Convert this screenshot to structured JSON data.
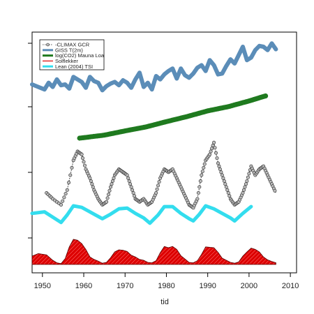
{
  "chart_data": {
    "type": "line",
    "xlabel": "tid",
    "xlim": [
      1947.5,
      2011.5
    ],
    "x_ticks": [
      1950,
      1960,
      1970,
      1980,
      1990,
      2000,
      2010
    ],
    "y_axis": "unlabeled, stacked normalized series",
    "legend_position": "top-left",
    "series": [
      {
        "name": "-CLIMAX GCR",
        "style": "points+dotted",
        "color": "#333333",
        "points": [
          [
            1951.0,
            -2.0
          ],
          [
            1952.5,
            -3.0
          ],
          [
            1954.5,
            -4.0
          ],
          [
            1956.0,
            -1.5
          ],
          [
            1957.5,
            3.5
          ],
          [
            1958.5,
            5.0
          ],
          [
            1959.5,
            4.5
          ],
          [
            1960.5,
            2.0
          ],
          [
            1961.5,
            0.5
          ],
          [
            1962.5,
            -1.5
          ],
          [
            1963.5,
            -3.0
          ],
          [
            1964.5,
            -4.0
          ],
          [
            1965.5,
            -3.5
          ],
          [
            1966.5,
            -1.0
          ],
          [
            1967.5,
            1.0
          ],
          [
            1968.5,
            2.0
          ],
          [
            1969.5,
            1.5
          ],
          [
            1970.5,
            1.0
          ],
          [
            1971.5,
            -1.0
          ],
          [
            1972.5,
            -3.0
          ],
          [
            1973.5,
            -3.5
          ],
          [
            1974.5,
            -3.0
          ],
          [
            1975.5,
            -4.0
          ],
          [
            1976.5,
            -3.5
          ],
          [
            1977.5,
            -2.0
          ],
          [
            1978.5,
            0.5
          ],
          [
            1979.5,
            2.0
          ],
          [
            1980.5,
            1.5
          ],
          [
            1981.5,
            2.0
          ],
          [
            1982.5,
            0.5
          ],
          [
            1983.5,
            -1.0
          ],
          [
            1984.5,
            -2.5
          ],
          [
            1985.5,
            -4.0
          ],
          [
            1986.5,
            -4.5
          ],
          [
            1987.5,
            -3.0
          ],
          [
            1988.5,
            1.0
          ],
          [
            1989.5,
            3.5
          ],
          [
            1990.5,
            4.5
          ],
          [
            1991.5,
            6.5
          ],
          [
            1992.5,
            3.0
          ],
          [
            1993.5,
            1.0
          ],
          [
            1994.5,
            -1.0
          ],
          [
            1995.5,
            -3.0
          ],
          [
            1996.5,
            -4.0
          ],
          [
            1997.5,
            -3.5
          ],
          [
            1998.5,
            -2.0
          ],
          [
            1999.5,
            0.0
          ],
          [
            2000.5,
            2.5
          ],
          [
            2001.5,
            1.0
          ],
          [
            2002.5,
            2.0
          ],
          [
            2003.5,
            2.5
          ],
          [
            2004.5,
            1.0
          ],
          [
            2005.5,
            -0.5
          ],
          [
            2006.5,
            -2.0
          ]
        ]
      },
      {
        "name": "GISS T(2m)",
        "style": "line",
        "color": "#5b8db8",
        "points": [
          [
            1947.5,
            0.0
          ],
          [
            1949.0,
            -0.3
          ],
          [
            1950.5,
            -0.6
          ],
          [
            1951.5,
            0.2
          ],
          [
            1952.5,
            -0.3
          ],
          [
            1953.5,
            0.6
          ],
          [
            1954.5,
            -0.1
          ],
          [
            1955.5,
            0.0
          ],
          [
            1956.5,
            -0.5
          ],
          [
            1957.5,
            0.9
          ],
          [
            1958.5,
            0.6
          ],
          [
            1959.5,
            0.3
          ],
          [
            1960.5,
            -0.4
          ],
          [
            1961.5,
            0.9
          ],
          [
            1962.5,
            0.4
          ],
          [
            1963.5,
            0.2
          ],
          [
            1964.5,
            -0.7
          ],
          [
            1965.5,
            -0.2
          ],
          [
            1966.5,
            0.1
          ],
          [
            1967.5,
            0.3
          ],
          [
            1968.5,
            -0.1
          ],
          [
            1969.5,
            0.5
          ],
          [
            1970.5,
            0.2
          ],
          [
            1971.5,
            -0.4
          ],
          [
            1972.5,
            0.6
          ],
          [
            1973.5,
            1.4
          ],
          [
            1974.5,
            -0.3
          ],
          [
            1975.5,
            0.2
          ],
          [
            1976.5,
            -0.6
          ],
          [
            1977.5,
            1.0
          ],
          [
            1978.5,
            0.6
          ],
          [
            1979.5,
            1.2
          ],
          [
            1980.5,
            1.6
          ],
          [
            1981.5,
            1.9
          ],
          [
            1982.5,
            0.7
          ],
          [
            1983.5,
            1.9
          ],
          [
            1984.5,
            1.1
          ],
          [
            1985.5,
            0.8
          ],
          [
            1986.5,
            1.3
          ],
          [
            1987.5,
            2.0
          ],
          [
            1988.5,
            2.3
          ],
          [
            1989.5,
            1.6
          ],
          [
            1990.5,
            2.9
          ],
          [
            1991.5,
            2.3
          ],
          [
            1992.5,
            1.2
          ],
          [
            1993.5,
            1.3
          ],
          [
            1994.5,
            2.2
          ],
          [
            1995.5,
            3.0
          ],
          [
            1996.5,
            2.5
          ],
          [
            1997.5,
            3.5
          ],
          [
            1998.5,
            4.5
          ],
          [
            1999.5,
            2.9
          ],
          [
            2000.5,
            3.2
          ],
          [
            2001.5,
            4.1
          ],
          [
            2002.5,
            4.6
          ],
          [
            2003.5,
            4.5
          ],
          [
            2004.5,
            4.1
          ],
          [
            2005.5,
            4.9
          ],
          [
            2006.5,
            4.2
          ]
        ]
      },
      {
        "name": "log(CO2) Mauna Loa",
        "style": "points",
        "color": "#1f7a1f",
        "points": [
          [
            1959.0,
            315.9
          ],
          [
            1965.0,
            320.0
          ],
          [
            1970.0,
            325.7
          ],
          [
            1975.0,
            331.1
          ],
          [
            1980.0,
            338.7
          ],
          [
            1985.0,
            346.0
          ],
          [
            1990.0,
            354.4
          ],
          [
            1995.0,
            360.8
          ],
          [
            2000.0,
            369.5
          ],
          [
            2004.0,
            377.5
          ]
        ]
      },
      {
        "name": "Solflekker",
        "style": "filled-area",
        "color": "#dd0000",
        "points": [
          [
            1947.5,
            2.0
          ],
          [
            1949.0,
            2.6
          ],
          [
            1951.0,
            2.3
          ],
          [
            1952.5,
            1.0
          ],
          [
            1953.5,
            0.4
          ],
          [
            1954.5,
            0.2
          ],
          [
            1955.5,
            1.4
          ],
          [
            1956.5,
            4.2
          ],
          [
            1957.5,
            6.0
          ],
          [
            1958.5,
            5.8
          ],
          [
            1959.5,
            5.0
          ],
          [
            1960.5,
            3.6
          ],
          [
            1961.5,
            1.8
          ],
          [
            1962.5,
            1.2
          ],
          [
            1963.5,
            0.8
          ],
          [
            1964.5,
            0.3
          ],
          [
            1965.5,
            0.5
          ],
          [
            1966.5,
            1.6
          ],
          [
            1967.5,
            3.0
          ],
          [
            1968.5,
            3.5
          ],
          [
            1969.5,
            3.4
          ],
          [
            1970.5,
            3.1
          ],
          [
            1971.5,
            2.2
          ],
          [
            1972.5,
            1.8
          ],
          [
            1973.5,
            1.2
          ],
          [
            1974.5,
            1.0
          ],
          [
            1975.5,
            0.5
          ],
          [
            1976.5,
            0.4
          ],
          [
            1977.5,
            0.9
          ],
          [
            1978.5,
            2.8
          ],
          [
            1979.5,
            4.3
          ],
          [
            1980.5,
            4.0
          ],
          [
            1981.5,
            4.3
          ],
          [
            1982.5,
            3.6
          ],
          [
            1983.5,
            2.1
          ],
          [
            1984.5,
            1.3
          ],
          [
            1985.5,
            0.5
          ],
          [
            1986.5,
            0.4
          ],
          [
            1987.5,
            0.9
          ],
          [
            1988.5,
            2.4
          ],
          [
            1989.5,
            4.2
          ],
          [
            1990.5,
            4.1
          ],
          [
            1991.5,
            4.0
          ],
          [
            1992.5,
            2.9
          ],
          [
            1993.5,
            1.5
          ],
          [
            1994.5,
            1.0
          ],
          [
            1995.5,
            0.5
          ],
          [
            1996.5,
            0.3
          ],
          [
            1997.5,
            0.6
          ],
          [
            1998.5,
            2.0
          ],
          [
            1999.5,
            3.0
          ],
          [
            2000.5,
            3.9
          ],
          [
            2001.5,
            3.6
          ],
          [
            2002.5,
            3.0
          ],
          [
            2003.5,
            1.8
          ],
          [
            2004.5,
            1.1
          ],
          [
            2005.5,
            0.7
          ],
          [
            2006.5,
            0.4
          ]
        ]
      },
      {
        "name": "Lean (2004) TSI",
        "style": "line",
        "color": "#33ddee",
        "points": [
          [
            1947.5,
            1.0
          ],
          [
            1950.5,
            1.2
          ],
          [
            1952.5,
            0.5
          ],
          [
            1954.5,
            -0.2
          ],
          [
            1956.0,
            0.8
          ],
          [
            1957.5,
            2.0
          ],
          [
            1959.5,
            1.8
          ],
          [
            1962.5,
            0.9
          ],
          [
            1964.5,
            0.3
          ],
          [
            1966.5,
            0.9
          ],
          [
            1968.5,
            1.6
          ],
          [
            1970.5,
            1.7
          ],
          [
            1972.5,
            1.0
          ],
          [
            1974.5,
            0.4
          ],
          [
            1976.0,
            -0.3
          ],
          [
            1978.0,
            0.8
          ],
          [
            1979.5,
            1.9
          ],
          [
            1981.5,
            1.9
          ],
          [
            1983.5,
            1.0
          ],
          [
            1985.5,
            0.3
          ],
          [
            1986.5,
            0.0
          ],
          [
            1988.0,
            0.9
          ],
          [
            1989.5,
            2.0
          ],
          [
            1991.5,
            1.6
          ],
          [
            1993.5,
            1.0
          ],
          [
            1995.5,
            0.4
          ],
          [
            1996.5,
            0.0
          ],
          [
            1998.5,
            1.0
          ],
          [
            2000.5,
            1.9
          ]
        ]
      }
    ]
  }
}
